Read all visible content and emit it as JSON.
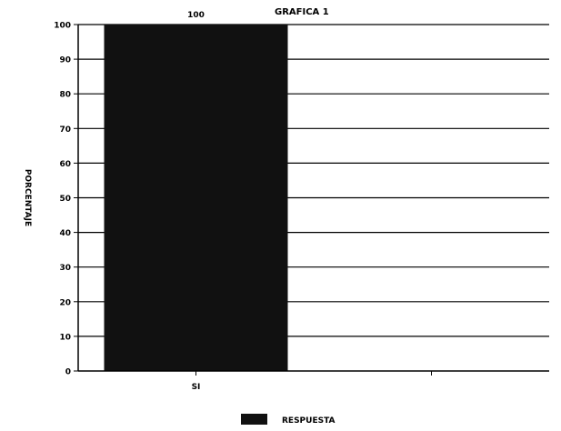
{
  "chart_data": {
    "type": "bar",
    "title": "GRAFICA 1",
    "ylabel": "PORCENTAJE",
    "xlabel": "",
    "categories": [
      "SI",
      ""
    ],
    "series": [
      {
        "name": "RESPUESTA",
        "values": [
          100,
          0
        ]
      }
    ],
    "data_labels": [
      "100",
      ""
    ],
    "ylim": [
      0,
      100
    ],
    "yticks": [
      0,
      10,
      20,
      30,
      40,
      50,
      60,
      70,
      80,
      90,
      100
    ],
    "grid": true,
    "legend_position": "bottom-center",
    "colors": {
      "bar": "#111111",
      "grid": "#000000",
      "text": "#000000",
      "background": "#ffffff"
    }
  }
}
